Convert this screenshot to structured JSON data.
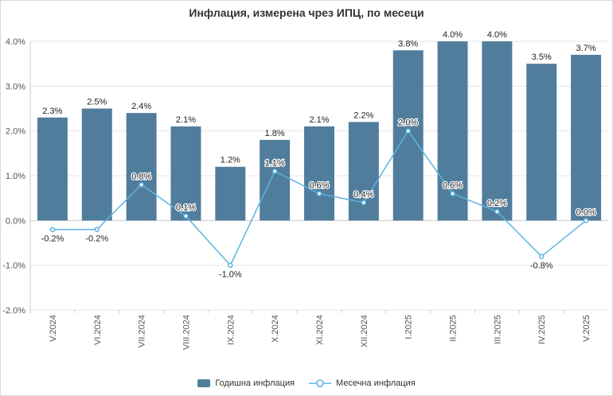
{
  "chart_data": {
    "title": "Инфлация, измерена чрез ИПЦ, по месеци",
    "type": "bar",
    "categories": [
      "V.2024",
      "VI.2024",
      "VII.2024",
      "VIII.2024",
      "IX.2024",
      "X.2024",
      "XI.2024",
      "XII.2024",
      "I.2025",
      "II.2025",
      "III.2025",
      "IV.2025",
      "V.2025"
    ],
    "series": [
      {
        "name": "Годишна инфлация",
        "type": "bar",
        "color": "#517d9c",
        "values": [
          2.3,
          2.5,
          2.4,
          2.1,
          1.2,
          1.8,
          2.1,
          2.2,
          3.8,
          4.0,
          4.0,
          3.5,
          3.7
        ],
        "labels": [
          "2.3%",
          "2.5%",
          "2.4%",
          "2.1%",
          "1.2%",
          "1.8%",
          "2.1%",
          "2.2%",
          "3.8%",
          "4.0%",
          "4.0%",
          "3.5%",
          "3.7%"
        ]
      },
      {
        "name": "Месечна инфлация",
        "type": "line",
        "color": "#5ab4e0",
        "values": [
          -0.2,
          -0.2,
          0.8,
          0.1,
          -1.0,
          1.1,
          0.6,
          0.4,
          2.0,
          0.6,
          0.2,
          -0.8,
          0.0
        ],
        "labels": [
          "-0.2%",
          "-0.2%",
          "0.8%",
          "0.1%",
          "-1.0%",
          "1.1%",
          "0.6%",
          "0.4%",
          "2.0%",
          "0.6%",
          "0.2%",
          "-0.8%",
          "0.0%"
        ]
      }
    ],
    "ylim": [
      -2.0,
      4.0
    ],
    "yticks": [
      4.0,
      3.0,
      2.0,
      1.0,
      0.0,
      -1.0,
      -2.0
    ],
    "ytick_labels": [
      "4.0%",
      "3.0%",
      "2.0%",
      "1.0%",
      "0.0%",
      "-1.0%",
      "-2.0%"
    ],
    "grid": true,
    "legend_position": "bottom"
  }
}
